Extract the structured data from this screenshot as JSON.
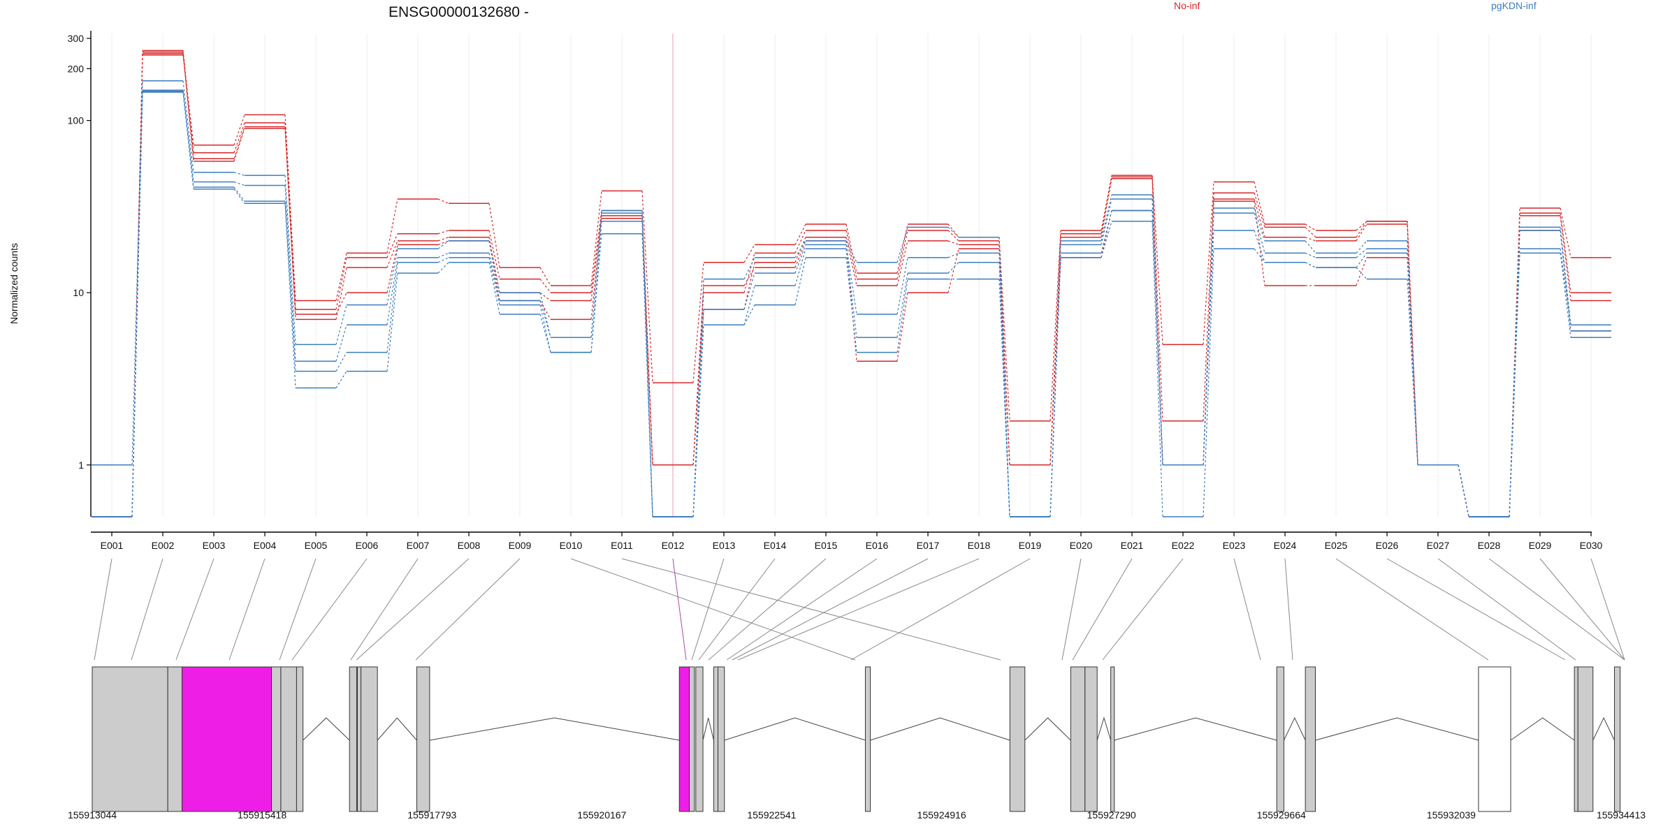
{
  "chart_data": {
    "type": "line",
    "title": "ENSG00000132680 -",
    "ylabel": "Normalized counts",
    "yscale": "log",
    "y_ticks": [
      1,
      10,
      100,
      200,
      300
    ],
    "ylim": [
      0.5,
      320
    ],
    "categories": [
      "E001",
      "E002",
      "E003",
      "E004",
      "E005",
      "E006",
      "E007",
      "E008",
      "E009",
      "E010",
      "E011",
      "E012",
      "E013",
      "E014",
      "E015",
      "E016",
      "E017",
      "E018",
      "E019",
      "E020",
      "E021",
      "E022",
      "E023",
      "E024",
      "E025",
      "E026",
      "E027",
      "E028",
      "E029",
      "E030"
    ],
    "highlighted_exon": "E012",
    "legend": [
      {
        "name": "No-inf",
        "color": "#d62728"
      },
      {
        "name": "pgKDN-inf",
        "color": "#3b7dbf"
      }
    ],
    "series": [
      {
        "group": "No-inf",
        "color": "#d62728",
        "values": [
          0.5,
          240,
          72,
          108,
          9.0,
          17,
          35,
          33,
          14,
          11,
          39,
          3.0,
          15,
          19,
          25,
          13,
          25,
          21,
          1.8,
          23,
          48,
          5.0,
          44,
          25,
          23,
          26,
          1.0,
          0.5,
          31,
          16
        ]
      },
      {
        "group": "No-inf",
        "color": "#d62728",
        "values": [
          0.5,
          255,
          65,
          97,
          8.0,
          16,
          22,
          23,
          12,
          10,
          30,
          1.0,
          10,
          17,
          23,
          12,
          23,
          20,
          1.0,
          22,
          47,
          1.8,
          38,
          24,
          21,
          26,
          1.0,
          0.5,
          29,
          10
        ]
      },
      {
        "group": "No-inf",
        "color": "#d62728",
        "values": [
          0.5,
          250,
          60,
          92,
          7.0,
          14,
          20,
          21,
          10,
          9.0,
          28,
          1.0,
          8.0,
          15,
          21,
          11,
          20,
          19,
          1.0,
          21,
          46,
          1.0,
          35,
          21,
          20,
          25,
          1.0,
          0.5,
          28,
          9.0
        ]
      },
      {
        "group": "No-inf",
        "color": "#d62728",
        "values": [
          0.5,
          245,
          58,
          90,
          7.5,
          10,
          19,
          20,
          9.0,
          7.0,
          27,
          1.0,
          11,
          14,
          20,
          4.0,
          10,
          18,
          1.0,
          16,
          30,
          1.0,
          34,
          11,
          11,
          16,
          1.0,
          0.5,
          23,
          6.0
        ]
      },
      {
        "group": "pgKDN-inf",
        "color": "#3b7dbf",
        "values": [
          1.0,
          170,
          50,
          48,
          5.0,
          8.5,
          18,
          20,
          10,
          5.5,
          30,
          0.5,
          12,
          16,
          20,
          15,
          24,
          21,
          0.5,
          20,
          37,
          1.0,
          31,
          20,
          17,
          20,
          1.0,
          0.5,
          24,
          6.5
        ]
      },
      {
        "group": "pgKDN-inf",
        "color": "#3b7dbf",
        "values": [
          0.5,
          150,
          44,
          42,
          4.0,
          6.5,
          16,
          17,
          9.0,
          5.5,
          29,
          0.5,
          8.0,
          13,
          19,
          7.5,
          16,
          17,
          0.5,
          19,
          35,
          1.0,
          29,
          17,
          16,
          18,
          1.0,
          0.5,
          23,
          6.0
        ]
      },
      {
        "group": "pgKDN-inf",
        "color": "#3b7dbf",
        "values": [
          0.5,
          148,
          41,
          34,
          3.5,
          4.5,
          15,
          16,
          8.5,
          4.5,
          26,
          0.5,
          6.5,
          11,
          18,
          5.5,
          13,
          15,
          0.5,
          17,
          30,
          1.0,
          23,
          15,
          14,
          17,
          1.0,
          0.5,
          18,
          6.5
        ]
      },
      {
        "group": "pgKDN-inf",
        "color": "#3b7dbf",
        "values": [
          0.5,
          146,
          40,
          33,
          2.8,
          3.5,
          13,
          15,
          7.5,
          4.5,
          22,
          0.5,
          6.5,
          8.5,
          16,
          4.5,
          12,
          12,
          0.5,
          16,
          26,
          0.5,
          18,
          15,
          14,
          12,
          1.0,
          0.5,
          17,
          5.5
        ]
      }
    ]
  },
  "gene_model": {
    "x_ticks": [
      "155913044",
      "155915418",
      "155917793",
      "155920167",
      "155922541",
      "155924916",
      "155927290",
      "155929664",
      "155932039",
      "155934413"
    ],
    "start": 155913044,
    "end": 155934413,
    "exon_color": "#cccccc",
    "highlight_color": "#ee1ee6"
  }
}
